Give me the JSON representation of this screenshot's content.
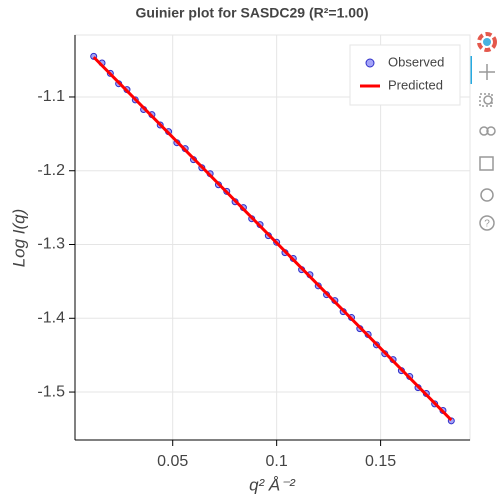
{
  "chart_data": {
    "type": "scatter",
    "title": "Guinier plot for SASDC29 (R²=1.00)",
    "xlabel": "q² Å⁻²",
    "ylabel": "Log I(q)",
    "xlim": [
      0.003,
      0.193
    ],
    "ylim": [
      -1.565,
      -1.016
    ],
    "xticks": [
      0.05,
      0.1,
      0.15
    ],
    "yticks": [
      -1.1,
      -1.2,
      -1.3,
      -1.4,
      -1.5
    ],
    "grid": true,
    "legend": "top_right",
    "series": [
      {
        "name": "Observed",
        "type": "scatter",
        "color": "#8585f5",
        "x": [
          0.012,
          0.016,
          0.02,
          0.024,
          0.028,
          0.032,
          0.036,
          0.04,
          0.044,
          0.048,
          0.052,
          0.056,
          0.06,
          0.064,
          0.068,
          0.072,
          0.076,
          0.08,
          0.084,
          0.088,
          0.092,
          0.096,
          0.1,
          0.104,
          0.108,
          0.112,
          0.116,
          0.12,
          0.124,
          0.128,
          0.132,
          0.136,
          0.14,
          0.144,
          0.148,
          0.152,
          0.156,
          0.16,
          0.164,
          0.168,
          0.172,
          0.176,
          0.18,
          0.184
        ],
        "values": [
          -1.045,
          -1.054,
          -1.068,
          -1.082,
          -1.09,
          -1.104,
          -1.117,
          -1.124,
          -1.138,
          -1.147,
          -1.162,
          -1.17,
          -1.185,
          -1.196,
          -1.204,
          -1.219,
          -1.228,
          -1.242,
          -1.25,
          -1.265,
          -1.273,
          -1.288,
          -1.297,
          -1.311,
          -1.319,
          -1.334,
          -1.341,
          -1.356,
          -1.368,
          -1.376,
          -1.391,
          -1.399,
          -1.414,
          -1.422,
          -1.436,
          -1.448,
          -1.456,
          -1.471,
          -1.479,
          -1.494,
          -1.502,
          -1.516,
          -1.525,
          -1.539
        ]
      },
      {
        "name": "Predicted",
        "type": "line",
        "color": "#ff0000",
        "x": [
          0.012,
          0.184
        ],
        "values": [
          -1.046,
          -1.538
        ]
      }
    ]
  }
}
